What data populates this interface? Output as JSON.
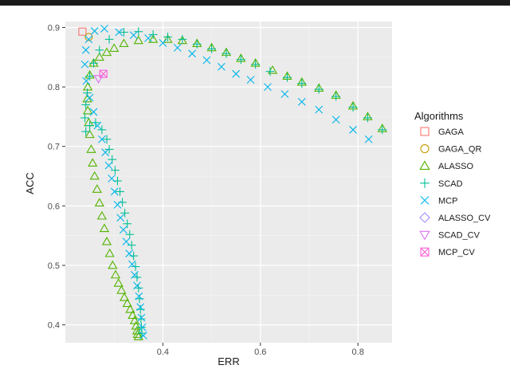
{
  "chart_data": {
    "type": "scatter",
    "xlabel": "ERR",
    "ylabel": "ACC",
    "xlim": [
      0.2,
      0.87
    ],
    "ylim": [
      0.37,
      0.91
    ],
    "x_ticks": [
      0.4,
      0.6,
      0.8
    ],
    "x_tick_labels": [
      "0.4",
      "0.6",
      "0.8"
    ],
    "y_ticks": [
      0.4,
      0.5,
      0.6,
      0.7,
      0.8,
      0.9
    ],
    "y_tick_labels": [
      "0.4",
      "0.5",
      "0.6",
      "0.7",
      "0.8",
      "0.9"
    ],
    "grid": true,
    "legend": {
      "title": "Algorithms",
      "position": "right"
    },
    "series": [
      {
        "name": "GAGA",
        "shape": "square",
        "color": "#F8766D",
        "points": [
          [
            0.235,
            0.893
          ]
        ]
      },
      {
        "name": "GAGA_QR",
        "shape": "circle",
        "color": "#C49A00",
        "points": [
          [
            0.248,
            0.884
          ]
        ]
      },
      {
        "name": "ALASSO",
        "shape": "triangle",
        "color": "#53B400",
        "points": [
          [
            0.85,
            0.73
          ],
          [
            0.82,
            0.75
          ],
          [
            0.79,
            0.768
          ],
          [
            0.755,
            0.786
          ],
          [
            0.72,
            0.798
          ],
          [
            0.685,
            0.808
          ],
          [
            0.655,
            0.818
          ],
          [
            0.625,
            0.828
          ],
          [
            0.59,
            0.84
          ],
          [
            0.56,
            0.848
          ],
          [
            0.53,
            0.858
          ],
          [
            0.5,
            0.866
          ],
          [
            0.47,
            0.873
          ],
          [
            0.44,
            0.878
          ],
          [
            0.41,
            0.88
          ],
          [
            0.38,
            0.88
          ],
          [
            0.35,
            0.878
          ],
          [
            0.32,
            0.873
          ],
          [
            0.3,
            0.865
          ],
          [
            0.285,
            0.858
          ],
          [
            0.27,
            0.85
          ],
          [
            0.258,
            0.84
          ],
          [
            0.25,
            0.82
          ],
          [
            0.246,
            0.8
          ],
          [
            0.245,
            0.78
          ],
          [
            0.246,
            0.76
          ],
          [
            0.248,
            0.74
          ],
          [
            0.25,
            0.72
          ],
          [
            0.253,
            0.695
          ],
          [
            0.256,
            0.672
          ],
          [
            0.26,
            0.65
          ],
          [
            0.265,
            0.628
          ],
          [
            0.27,
            0.605
          ],
          [
            0.275,
            0.583
          ],
          [
            0.28,
            0.562
          ],
          [
            0.285,
            0.54
          ],
          [
            0.291,
            0.52
          ],
          [
            0.297,
            0.5
          ],
          [
            0.303,
            0.484
          ],
          [
            0.309,
            0.47
          ],
          [
            0.315,
            0.458
          ],
          [
            0.321,
            0.446
          ],
          [
            0.327,
            0.436
          ],
          [
            0.333,
            0.426
          ],
          [
            0.338,
            0.416
          ],
          [
            0.342,
            0.407
          ],
          [
            0.345,
            0.398
          ],
          [
            0.347,
            0.39
          ],
          [
            0.348,
            0.384
          ],
          [
            0.35,
            0.38
          ]
        ]
      },
      {
        "name": "SCAD",
        "shape": "plus",
        "color": "#00C094",
        "points": [
          [
            0.85,
            0.728
          ],
          [
            0.82,
            0.748
          ],
          [
            0.79,
            0.766
          ],
          [
            0.755,
            0.784
          ],
          [
            0.72,
            0.796
          ],
          [
            0.685,
            0.806
          ],
          [
            0.655,
            0.816
          ],
          [
            0.62,
            0.826
          ],
          [
            0.59,
            0.838
          ],
          [
            0.56,
            0.846
          ],
          [
            0.53,
            0.856
          ],
          [
            0.5,
            0.864
          ],
          [
            0.47,
            0.872
          ],
          [
            0.44,
            0.88
          ],
          [
            0.41,
            0.884
          ],
          [
            0.38,
            0.888
          ],
          [
            0.35,
            0.893
          ],
          [
            0.32,
            0.892
          ],
          [
            0.29,
            0.88
          ],
          [
            0.27,
            0.862
          ],
          [
            0.258,
            0.84
          ],
          [
            0.25,
            0.818
          ],
          [
            0.245,
            0.79
          ],
          [
            0.242,
            0.77
          ],
          [
            0.24,
            0.748
          ],
          [
            0.242,
            0.725
          ],
          [
            0.25,
            0.735
          ],
          [
            0.262,
            0.74
          ],
          [
            0.275,
            0.728
          ],
          [
            0.285,
            0.712
          ],
          [
            0.29,
            0.695
          ],
          [
            0.296,
            0.678
          ],
          [
            0.302,
            0.66
          ],
          [
            0.307,
            0.642
          ],
          [
            0.312,
            0.624
          ],
          [
            0.317,
            0.606
          ],
          [
            0.322,
            0.588
          ],
          [
            0.327,
            0.57
          ],
          [
            0.332,
            0.552
          ],
          [
            0.336,
            0.534
          ],
          [
            0.34,
            0.516
          ],
          [
            0.344,
            0.498
          ],
          [
            0.347,
            0.48
          ],
          [
            0.35,
            0.462
          ],
          [
            0.352,
            0.444
          ],
          [
            0.354,
            0.426
          ],
          [
            0.355,
            0.41
          ],
          [
            0.356,
            0.396
          ],
          [
            0.357,
            0.386
          ]
        ]
      },
      {
        "name": "MCP",
        "shape": "x",
        "color": "#00B6EB",
        "points": [
          [
            0.822,
            0.712
          ],
          [
            0.79,
            0.728
          ],
          [
            0.755,
            0.745
          ],
          [
            0.72,
            0.762
          ],
          [
            0.685,
            0.775
          ],
          [
            0.65,
            0.788
          ],
          [
            0.615,
            0.8
          ],
          [
            0.58,
            0.812
          ],
          [
            0.55,
            0.822
          ],
          [
            0.52,
            0.834
          ],
          [
            0.49,
            0.845
          ],
          [
            0.46,
            0.856
          ],
          [
            0.43,
            0.866
          ],
          [
            0.4,
            0.874
          ],
          [
            0.37,
            0.882
          ],
          [
            0.34,
            0.887
          ],
          [
            0.31,
            0.892
          ],
          [
            0.28,
            0.898
          ],
          [
            0.26,
            0.894
          ],
          [
            0.248,
            0.88
          ],
          [
            0.242,
            0.862
          ],
          [
            0.24,
            0.838
          ],
          [
            0.243,
            0.81
          ],
          [
            0.25,
            0.782
          ],
          [
            0.258,
            0.758
          ],
          [
            0.266,
            0.735
          ],
          [
            0.275,
            0.712
          ],
          [
            0.282,
            0.69
          ],
          [
            0.289,
            0.668
          ],
          [
            0.295,
            0.646
          ],
          [
            0.301,
            0.624
          ],
          [
            0.307,
            0.602
          ],
          [
            0.313,
            0.58
          ],
          [
            0.319,
            0.56
          ],
          [
            0.325,
            0.54
          ],
          [
            0.331,
            0.52
          ],
          [
            0.337,
            0.502
          ],
          [
            0.342,
            0.484
          ],
          [
            0.347,
            0.466
          ],
          [
            0.351,
            0.448
          ],
          [
            0.354,
            0.43
          ],
          [
            0.356,
            0.412
          ],
          [
            0.358,
            0.396
          ],
          [
            0.36,
            0.382
          ]
        ]
      },
      {
        "name": "ALASSO_CV",
        "shape": "diamond",
        "color": "#A58AFF",
        "points": []
      },
      {
        "name": "SCAD_CV",
        "shape": "triangle-down",
        "color": "#DF70F8",
        "points": [
          [
            0.268,
            0.814
          ]
        ]
      },
      {
        "name": "MCP_CV",
        "shape": "square-x",
        "color": "#FB61D7",
        "points": [
          [
            0.278,
            0.822
          ]
        ]
      }
    ]
  }
}
